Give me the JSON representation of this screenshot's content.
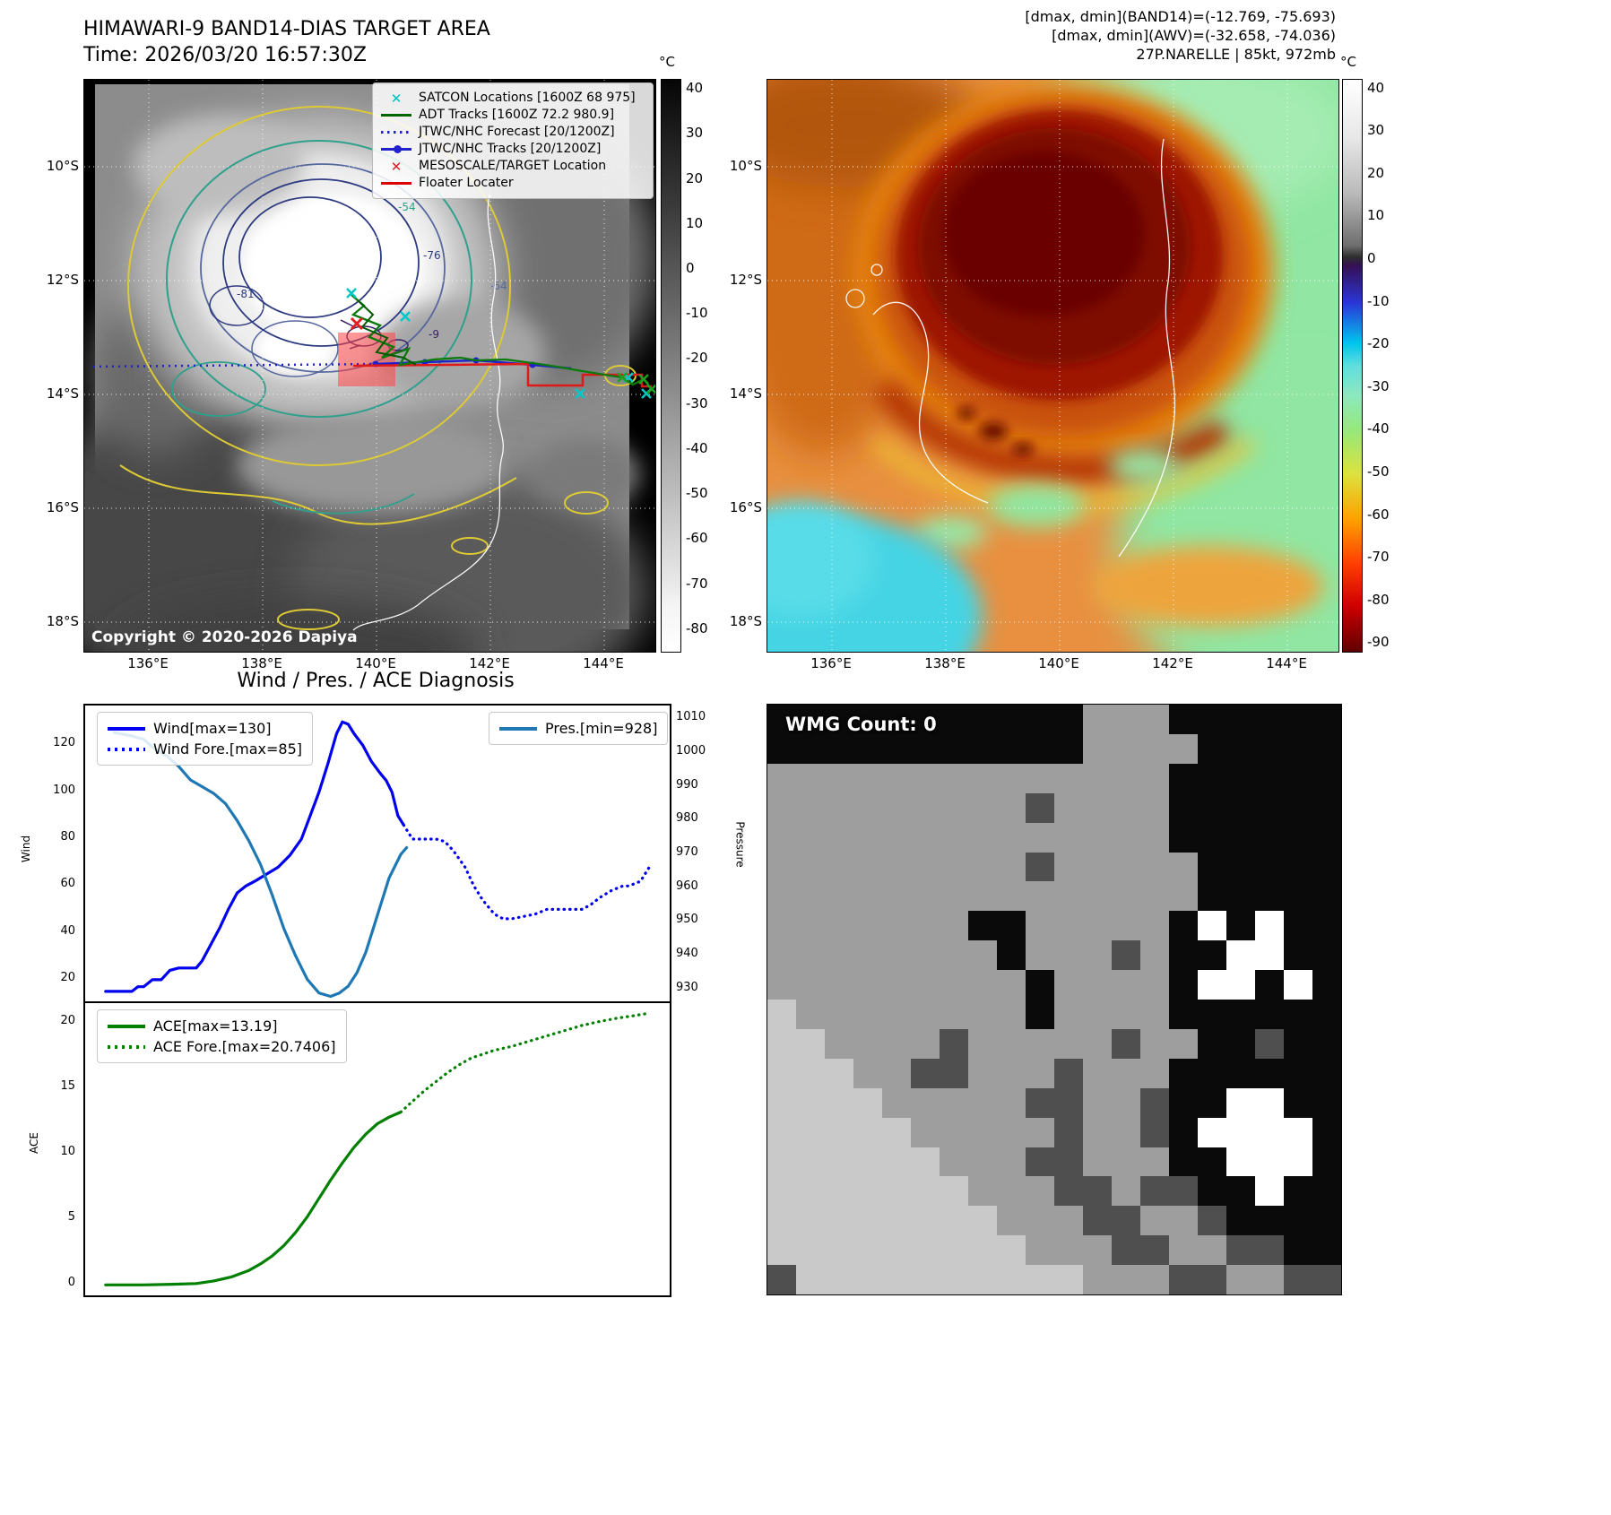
{
  "band14_panel": {
    "title": "HIMAWARI-9 BAND14-DIAS TARGET AREA",
    "time_line": "Time: 2026/03/20 16:57:30Z",
    "copyright": "Copyright © 2020-2026 Dapiya",
    "legend": [
      {
        "label": "SATCON Locations [1600Z 68 975]",
        "marker": "cyan-x"
      },
      {
        "label": "ADT Tracks [1600Z 72.2 980.9]",
        "marker": "dark-green-line"
      },
      {
        "label": "JTWC/NHC Forecast [20/1200Z]",
        "marker": "blue-dotted-line"
      },
      {
        "label": "JTWC/NHC Tracks [20/1200Z]",
        "marker": "blue-line-with-dot"
      },
      {
        "label": "MESOSCALE/TARGET Location",
        "marker": "red-x"
      },
      {
        "label": "Floater Locater",
        "marker": "red-line"
      }
    ],
    "contour_labels": [
      "-54",
      "-81",
      "-76",
      "-64",
      "-9"
    ],
    "colorbar": {
      "unit": "°C",
      "ticks": [
        "40",
        "30",
        "20",
        "10",
        "0",
        "-10",
        "-20",
        "-30",
        "-40",
        "-50",
        "-60",
        "-70",
        "-80"
      ]
    }
  },
  "awv_panel": {
    "title_lines": [
      "[dmax, dmin](BAND14)=(-12.769, -75.693)",
      "[dmax, dmin](AWV)=(-32.658, -74.036)",
      "27P.NARELLE | 85kt, 972mb"
    ],
    "colorbar": {
      "unit": "°C",
      "ticks": [
        "40",
        "30",
        "20",
        "10",
        "0",
        "-10",
        "-20",
        "-30",
        "-40",
        "-50",
        "-60",
        "-70",
        "-80",
        "-90"
      ]
    }
  },
  "geo_axes": {
    "lat_ticks": [
      "10°S",
      "12°S",
      "14°S",
      "16°S",
      "18°S"
    ],
    "lon_ticks": [
      "136°E",
      "138°E",
      "140°E",
      "142°E",
      "144°E"
    ]
  },
  "diagnosis_panel": {
    "title": "Wind / Pres. / ACE Diagnosis"
  },
  "wmg_panel": {
    "label": "WMG Count: 0",
    "palette": {
      "K": "#0a0a0a",
      "D": "#4f4f4f",
      "M": "#9e9e9e",
      "L": "#c9c9c9",
      "W": "#ffffff"
    },
    "pixel_rows": [
      "KKKKKKKKKKKMMMKKKKKK",
      "KKKKKKKKKKKMMMMKKKKK",
      "MMMMMMMMMMMMMMKKKKKK",
      "MMMMMMMMMDMMMMKKKKKK",
      "MMMMMMMMMMMMMMKKKKKK",
      "MMMMMMMMMDMMMMMKKKKK",
      "MMMMMMMMMMMMMMMKKKKK",
      "MMMMMMMKKMMMMMKWKWKK",
      "MMMMMMMMKMMMDMKKWWKK",
      "MMMMMMMMMKMMMMKWWKWK",
      "LMMMMMMMMKMMMMKKKKKK",
      "LLMMMMDMMMMMDMMKKDKK",
      "LLLMMDDMMMDMMMKKKKKK",
      "LLLLMMMMMDDMMDKKWWKK",
      "LLLLLMMMMMDMMDKWWWWK",
      "LLLLLLMMMDDMMMKKWWWK",
      "LLLLLLLMMMDDMDDKKWKK",
      "LLLLLLLLMMMDDMMDKKKK",
      "LLLLLLLLLMMMDDMMDDKK",
      "DLLLLLLLLLLMMMDDMMDD"
    ]
  },
  "chart_data": [
    {
      "type": "line",
      "title": "Wind / Pres. / ACE Diagnosis",
      "subplot": "wind-pressure",
      "x_axis": {
        "label": "",
        "range": [
          0,
          1
        ],
        "note": "normalized time, observed then forecast"
      },
      "grid": false,
      "legend_position": "upper-left and upper-center",
      "axes": {
        "wind": {
          "label": "Wind",
          "side": "left",
          "ticks": [
            20,
            40,
            60,
            80,
            100,
            120
          ],
          "range": [
            10,
            137
          ]
        },
        "pressure": {
          "label": "Pressure",
          "side": "right",
          "ticks": [
            930,
            940,
            950,
            960,
            970,
            980,
            990,
            1000,
            1010
          ],
          "range": [
            926,
            1014
          ]
        }
      },
      "series": [
        {
          "name": "Wind[max=130]",
          "axis": "wind",
          "style": "solid",
          "color": "#0000ee",
          "points": [
            [
              0.035,
              15
            ],
            [
              0.06,
              15
            ],
            [
              0.08,
              15
            ],
            [
              0.09,
              17
            ],
            [
              0.1,
              17
            ],
            [
              0.115,
              20
            ],
            [
              0.13,
              20
            ],
            [
              0.145,
              24
            ],
            [
              0.16,
              25
            ],
            [
              0.19,
              25
            ],
            [
              0.2,
              28
            ],
            [
              0.215,
              35
            ],
            [
              0.23,
              42
            ],
            [
              0.245,
              50
            ],
            [
              0.26,
              57
            ],
            [
              0.275,
              60
            ],
            [
              0.29,
              62
            ],
            [
              0.31,
              65
            ],
            [
              0.33,
              68
            ],
            [
              0.35,
              73
            ],
            [
              0.37,
              80
            ],
            [
              0.385,
              90
            ],
            [
              0.4,
              100
            ],
            [
              0.415,
              112
            ],
            [
              0.43,
              125
            ],
            [
              0.44,
              130
            ],
            [
              0.45,
              129
            ],
            [
              0.46,
              125
            ],
            [
              0.475,
              120
            ],
            [
              0.49,
              113
            ],
            [
              0.505,
              108
            ],
            [
              0.515,
              105
            ],
            [
              0.525,
              100
            ],
            [
              0.535,
              90
            ],
            [
              0.545,
              86
            ]
          ]
        },
        {
          "name": "Wind Fore.[max=85]",
          "axis": "wind",
          "style": "dotted",
          "color": "#0000ee",
          "points": [
            [
              0.545,
              86
            ],
            [
              0.56,
              80
            ],
            [
              0.58,
              80
            ],
            [
              0.6,
              80
            ],
            [
              0.615,
              79
            ],
            [
              0.63,
              75
            ],
            [
              0.65,
              68
            ],
            [
              0.665,
              60
            ],
            [
              0.68,
              54
            ],
            [
              0.7,
              48
            ],
            [
              0.715,
              46
            ],
            [
              0.73,
              46
            ],
            [
              0.75,
              47
            ],
            [
              0.77,
              48
            ],
            [
              0.79,
              50
            ],
            [
              0.81,
              50
            ],
            [
              0.83,
              50
            ],
            [
              0.85,
              50
            ],
            [
              0.865,
              52
            ],
            [
              0.88,
              55
            ],
            [
              0.9,
              58
            ],
            [
              0.92,
              60
            ],
            [
              0.93,
              60
            ],
            [
              0.95,
              62
            ],
            [
              0.965,
              68
            ]
          ]
        },
        {
          "name": "Pres.[min=928]",
          "axis": "pressure",
          "style": "solid",
          "color": "#1f77b4",
          "points": [
            [
              0.05,
              1006
            ],
            [
              0.08,
              1005
            ],
            [
              0.1,
              1004
            ],
            [
              0.12,
              1001
            ],
            [
              0.14,
              999
            ],
            [
              0.16,
              996
            ],
            [
              0.18,
              992
            ],
            [
              0.2,
              990
            ],
            [
              0.22,
              988
            ],
            [
              0.24,
              985
            ],
            [
              0.26,
              980
            ],
            [
              0.28,
              974
            ],
            [
              0.3,
              967
            ],
            [
              0.32,
              958
            ],
            [
              0.34,
              948
            ],
            [
              0.36,
              940
            ],
            [
              0.38,
              933
            ],
            [
              0.4,
              929
            ],
            [
              0.42,
              928
            ],
            [
              0.435,
              929
            ],
            [
              0.45,
              931
            ],
            [
              0.465,
              935
            ],
            [
              0.48,
              941
            ],
            [
              0.5,
              952
            ],
            [
              0.52,
              963
            ],
            [
              0.54,
              970
            ],
            [
              0.55,
              972
            ]
          ]
        }
      ]
    },
    {
      "type": "line",
      "subplot": "ace",
      "x_axis": {
        "label": "",
        "range": [
          0,
          1
        ]
      },
      "grid": false,
      "legend_position": "upper-left",
      "axes": {
        "ace": {
          "label": "ACE",
          "side": "left",
          "ticks": [
            0,
            5,
            10,
            15,
            20
          ],
          "range": [
            -0.8,
            21.5
          ]
        }
      },
      "series": [
        {
          "name": "ACE[max=13.19]",
          "axis": "ace",
          "style": "solid",
          "color": "#008000",
          "points": [
            [
              0.035,
              0
            ],
            [
              0.1,
              0
            ],
            [
              0.15,
              0.05
            ],
            [
              0.19,
              0.1
            ],
            [
              0.22,
              0.3
            ],
            [
              0.25,
              0.6
            ],
            [
              0.28,
              1.1
            ],
            [
              0.3,
              1.6
            ],
            [
              0.32,
              2.2
            ],
            [
              0.34,
              3.0
            ],
            [
              0.36,
              4.0
            ],
            [
              0.38,
              5.2
            ],
            [
              0.4,
              6.6
            ],
            [
              0.42,
              8.0
            ],
            [
              0.44,
              9.3
            ],
            [
              0.46,
              10.5
            ],
            [
              0.48,
              11.5
            ],
            [
              0.5,
              12.3
            ],
            [
              0.52,
              12.8
            ],
            [
              0.54,
              13.19
            ]
          ]
        },
        {
          "name": "ACE Fore.[max=20.7406]",
          "axis": "ace",
          "style": "dotted",
          "color": "#008000",
          "points": [
            [
              0.54,
              13.19
            ],
            [
              0.56,
              14.0
            ],
            [
              0.58,
              14.8
            ],
            [
              0.6,
              15.5
            ],
            [
              0.62,
              16.2
            ],
            [
              0.64,
              16.8
            ],
            [
              0.66,
              17.3
            ],
            [
              0.68,
              17.6
            ],
            [
              0.7,
              17.9
            ],
            [
              0.73,
              18.2
            ],
            [
              0.76,
              18.6
            ],
            [
              0.79,
              19.0
            ],
            [
              0.82,
              19.4
            ],
            [
              0.85,
              19.8
            ],
            [
              0.88,
              20.1
            ],
            [
              0.91,
              20.35
            ],
            [
              0.94,
              20.55
            ],
            [
              0.965,
              20.74
            ]
          ]
        }
      ]
    }
  ]
}
